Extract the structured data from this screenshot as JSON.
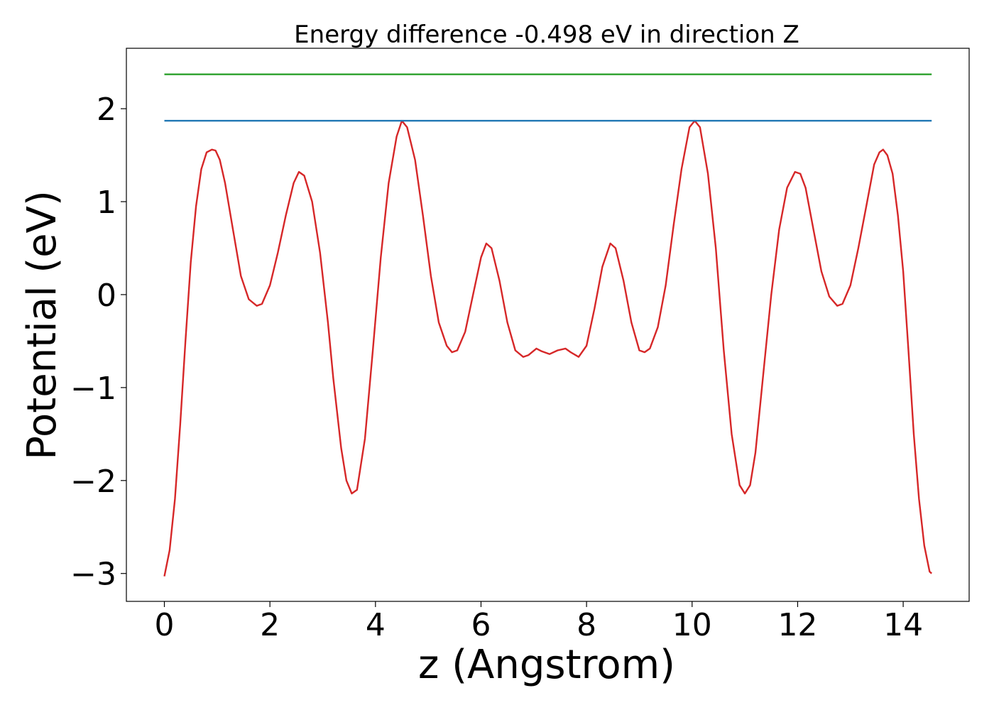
{
  "chart_data": {
    "type": "line",
    "title": "Energy difference -0.498 eV in direction Z",
    "xlabel": "z (Angstrom)",
    "ylabel": "Potential (eV)",
    "xlim": [
      -0.72,
      15.25
    ],
    "ylim": [
      -3.3,
      2.65
    ],
    "xticks": [
      0,
      2,
      4,
      6,
      8,
      10,
      12,
      14
    ],
    "xtick_labels": [
      "0",
      "2",
      "4",
      "6",
      "8",
      "10",
      "12",
      "14"
    ],
    "yticks": [
      -3,
      -2,
      -1,
      0,
      1,
      2
    ],
    "ytick_labels": [
      "−3",
      "−2",
      "−1",
      "0",
      "1",
      "2"
    ],
    "grid": false,
    "series": [
      {
        "color": "#d62728",
        "x": [
          0,
          0.1,
          0.2,
          0.3,
          0.4,
          0.5,
          0.6,
          0.7,
          0.8,
          0.9,
          0.97,
          1.05,
          1.15,
          1.3,
          1.45,
          1.6,
          1.75,
          1.85,
          2.0,
          2.15,
          2.3,
          2.45,
          2.55,
          2.65,
          2.8,
          2.95,
          3.1,
          3.2,
          3.35,
          3.45,
          3.55,
          3.65,
          3.8,
          3.95,
          4.1,
          4.25,
          4.4,
          4.5,
          4.6,
          4.75,
          4.9,
          5.05,
          5.2,
          5.35,
          5.45,
          5.55,
          5.7,
          5.85,
          6.0,
          6.1,
          6.2,
          6.35,
          6.5,
          6.65,
          6.8,
          6.9,
          7.05,
          7.15,
          7.3,
          7.45,
          7.6,
          7.7,
          7.85,
          8.0,
          8.15,
          8.3,
          8.45,
          8.55,
          8.7,
          8.85,
          9.0,
          9.1,
          9.2,
          9.35,
          9.5,
          9.65,
          9.8,
          9.95,
          10.05,
          10.15,
          10.3,
          10.45,
          10.6,
          10.75,
          10.9,
          11.0,
          11.1,
          11.2,
          11.35,
          11.5,
          11.65,
          11.8,
          11.95,
          12.05,
          12.15,
          12.3,
          12.45,
          12.6,
          12.75,
          12.85,
          13.0,
          13.15,
          13.3,
          13.45,
          13.55,
          13.62,
          13.7,
          13.8,
          13.9,
          14.0,
          14.1,
          14.2,
          14.3,
          14.4,
          14.5,
          14.54
        ],
        "y": [
          -3.03,
          -2.75,
          -2.2,
          -1.4,
          -0.5,
          0.35,
          0.95,
          1.35,
          1.53,
          1.56,
          1.55,
          1.45,
          1.2,
          0.7,
          0.2,
          -0.05,
          -0.12,
          -0.1,
          0.1,
          0.45,
          0.85,
          1.2,
          1.32,
          1.28,
          1.0,
          0.45,
          -0.3,
          -0.9,
          -1.65,
          -2.0,
          -2.14,
          -2.1,
          -1.55,
          -0.6,
          0.4,
          1.2,
          1.7,
          1.87,
          1.8,
          1.45,
          0.85,
          0.2,
          -0.3,
          -0.55,
          -0.62,
          -0.6,
          -0.4,
          0.0,
          0.4,
          0.55,
          0.5,
          0.15,
          -0.3,
          -0.6,
          -0.67,
          -0.65,
          -0.58,
          -0.61,
          -0.64,
          -0.6,
          -0.58,
          -0.62,
          -0.67,
          -0.55,
          -0.15,
          0.3,
          0.55,
          0.5,
          0.15,
          -0.3,
          -0.6,
          -0.62,
          -0.58,
          -0.35,
          0.1,
          0.75,
          1.35,
          1.8,
          1.87,
          1.8,
          1.3,
          0.5,
          -0.6,
          -1.5,
          -2.05,
          -2.14,
          -2.05,
          -1.7,
          -0.85,
          0.0,
          0.7,
          1.15,
          1.32,
          1.3,
          1.15,
          0.7,
          0.25,
          -0.02,
          -0.12,
          -0.1,
          0.1,
          0.5,
          0.95,
          1.4,
          1.53,
          1.56,
          1.5,
          1.3,
          0.85,
          0.25,
          -0.6,
          -1.5,
          -2.2,
          -2.7,
          -2.98,
          -3.0
        ]
      },
      {
        "color": "#1f77b4",
        "x": [
          0,
          14.54
        ],
        "y": [
          1.87,
          1.87
        ]
      },
      {
        "color": "#2ca02c",
        "x": [
          0,
          14.54
        ],
        "y": [
          2.37,
          2.37
        ]
      }
    ]
  }
}
